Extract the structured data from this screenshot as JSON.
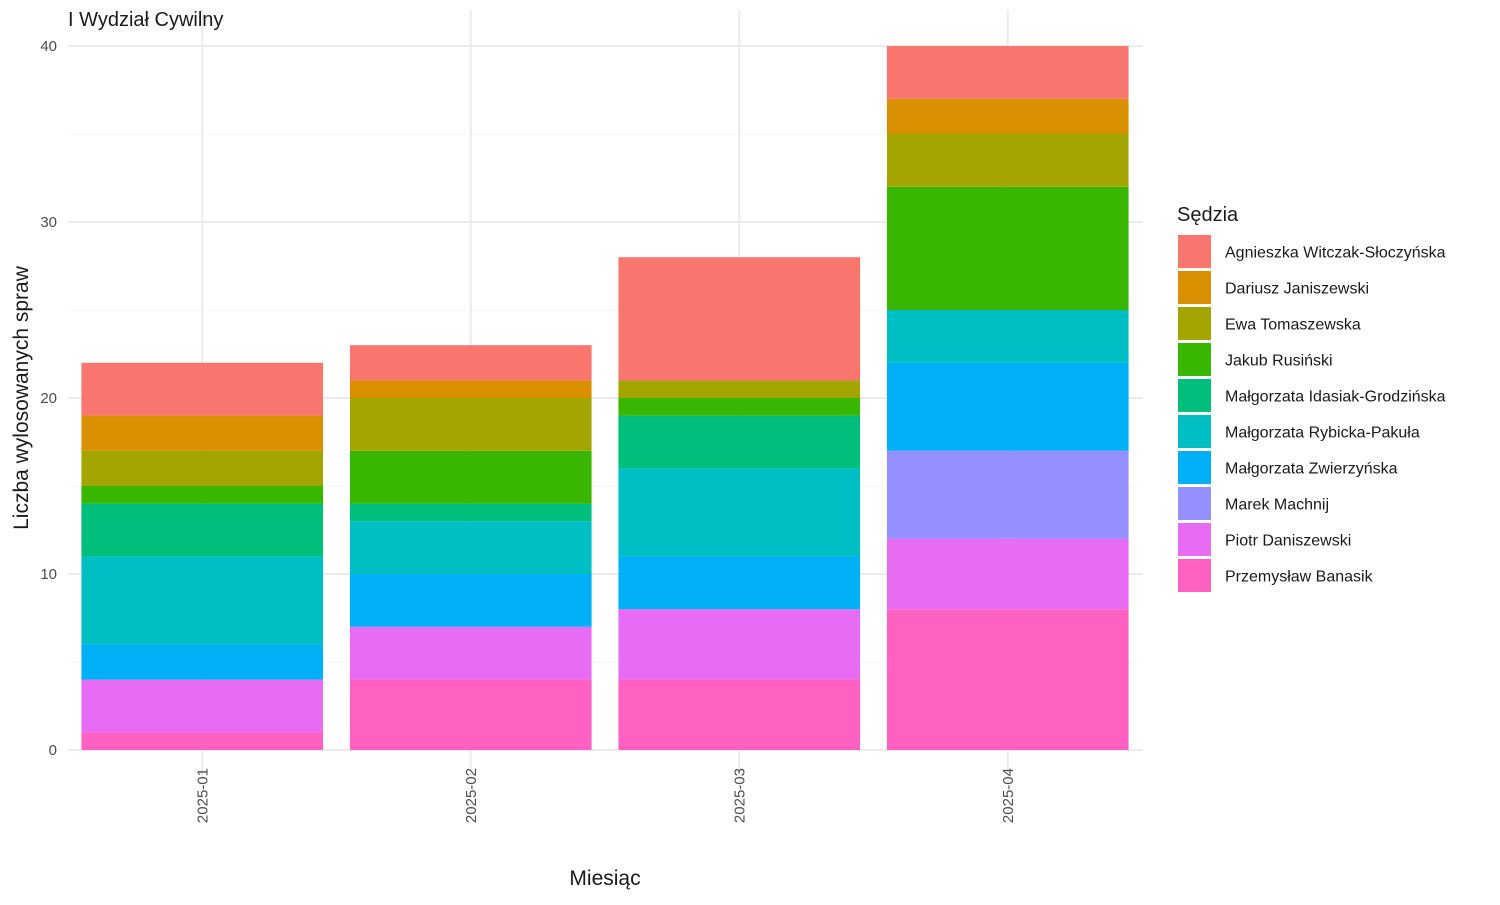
{
  "chart_data": {
    "type": "bar",
    "stacked": true,
    "title": "I Wydział Cywilny",
    "xlabel": "Miesiąc",
    "ylabel": "Liczba wylosowanych spraw",
    "categories": [
      "2025-01",
      "2025-02",
      "2025-03",
      "2025-04"
    ],
    "ylim": [
      0,
      40
    ],
    "yticks": [
      0,
      10,
      20,
      30,
      40
    ],
    "grid": true,
    "legend_title": "Sędzia",
    "legend_position": "right",
    "series": [
      {
        "name": "Przemysław Banasik",
        "color": "#FF61C3",
        "values": [
          1,
          4,
          4,
          8
        ]
      },
      {
        "name": "Piotr Daniszewski",
        "color": "#E76BF3",
        "values": [
          3,
          3,
          4,
          4
        ]
      },
      {
        "name": "Marek Machnij",
        "color": "#9590FF",
        "values": [
          0,
          0,
          0,
          5
        ]
      },
      {
        "name": "Małgorzata Zwierzyńska",
        "color": "#00B0F6",
        "values": [
          2,
          3,
          3,
          5
        ]
      },
      {
        "name": "Małgorzata Rybicka-Pakuła",
        "color": "#00BFC4",
        "values": [
          5,
          3,
          5,
          3
        ]
      },
      {
        "name": "Małgorzata Idasiak-Grodzińska",
        "color": "#00BF7D",
        "values": [
          3,
          1,
          3,
          0
        ]
      },
      {
        "name": "Jakub Rusiński",
        "color": "#39B600",
        "values": [
          1,
          3,
          1,
          7
        ]
      },
      {
        "name": "Ewa Tomaszewska",
        "color": "#A3A500",
        "values": [
          2,
          3,
          1,
          3
        ]
      },
      {
        "name": "Dariusz Janiszewski",
        "color": "#D89000",
        "values": [
          2,
          1,
          0,
          2
        ]
      },
      {
        "name": "Agnieszka Witczak-Słoczyńska",
        "color": "#F8766D",
        "values": [
          3,
          2,
          7,
          3
        ]
      }
    ]
  }
}
